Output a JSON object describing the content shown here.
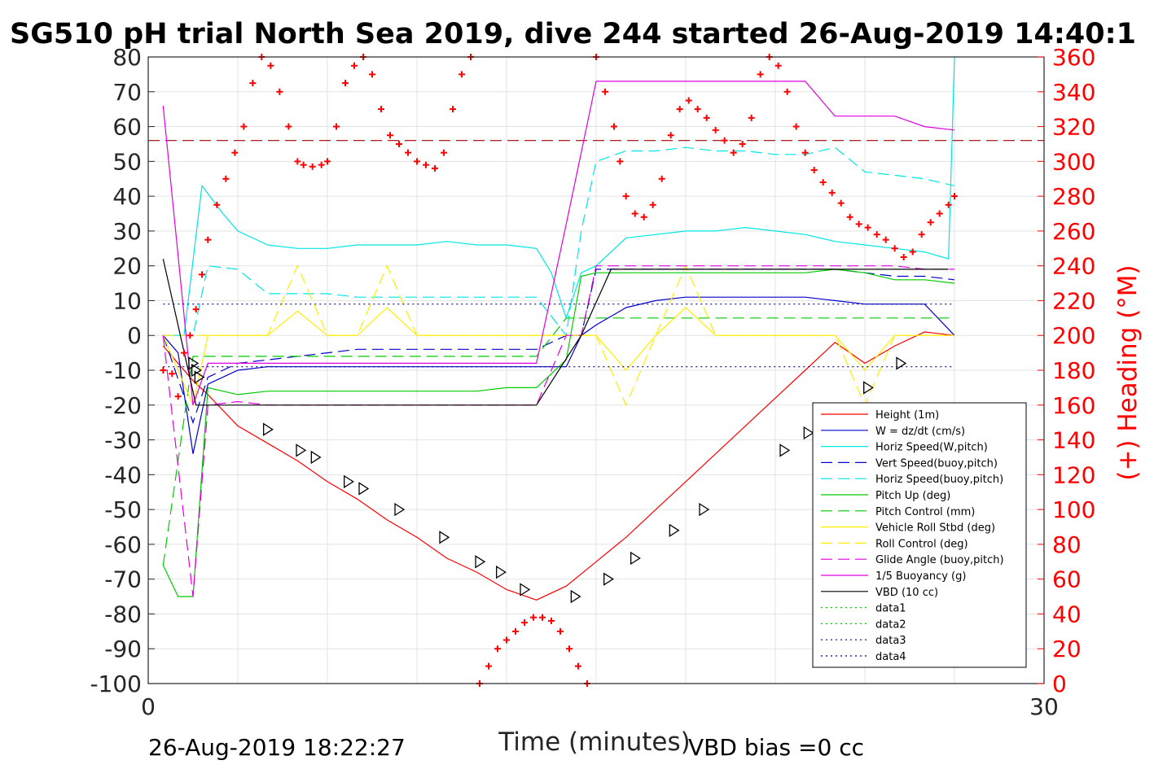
{
  "title": "SG510 pH trial North Sea 2019, dive 244 started 26-Aug-2019 14:40:1",
  "footer": {
    "timestamp": "26-Aug-2019 18:22:27",
    "vbd_bias": "VBD bias =0 cc"
  },
  "chart_data": {
    "type": "line",
    "xlabel": "Time (minutes)",
    "ylabel": "",
    "y2label": "(+) Heading (°M)",
    "xlim": [
      0,
      30
    ],
    "ylim": [
      -100,
      80
    ],
    "y2lim": [
      0,
      360
    ],
    "xticks": [
      "0",
      "30"
    ],
    "yticks": [
      "80",
      "70",
      "60",
      "50",
      "40",
      "30",
      "20",
      "10",
      "0",
      "-10",
      "-20",
      "-30",
      "-40",
      "-50",
      "-60",
      "-70",
      "-80",
      "-90",
      "-100"
    ],
    "y2ticks": [
      "360",
      "340",
      "320",
      "300",
      "280",
      "260",
      "240",
      "220",
      "200",
      "180",
      "160",
      "140",
      "120",
      "100",
      "80",
      "60",
      "40",
      "20",
      "0"
    ],
    "grid": true,
    "legend_position": "lower-right",
    "colors": {
      "red": "#ff0000",
      "blue": "#0000cd",
      "cyan": "#00e5e5",
      "green": "#00cc00",
      "yellow": "#ffee00",
      "magenta": "#e000e0",
      "black": "#000000",
      "darkred": "#a00000",
      "darkblue": "#000080"
    },
    "series": [
      {
        "name": "Height (1m)",
        "color": "#ff0000",
        "dash": "solid",
        "x": [
          0.5,
          1.5,
          2,
          3,
          4,
          5,
          6,
          7,
          8,
          9,
          10,
          11,
          12,
          13,
          14,
          15,
          16,
          17,
          18,
          19,
          20,
          21,
          22,
          23,
          24,
          25,
          26,
          27
        ],
        "y": [
          -3,
          -13,
          -17,
          -26,
          -31,
          -36,
          -42,
          -47,
          -53,
          -58,
          -64,
          -68,
          -73,
          -76,
          -72,
          -65,
          -58,
          -50,
          -42,
          -34,
          -26,
          -18,
          -10,
          -2,
          -8,
          -3,
          1,
          0
        ]
      },
      {
        "name": "W = dz/dt (cm/s)",
        "color": "#0000cd",
        "dash": "solid",
        "x": [
          0.5,
          1,
          1.5,
          2,
          3,
          4,
          5,
          6,
          7,
          8,
          9,
          10,
          11,
          12,
          13,
          14,
          14.5,
          15,
          16,
          17,
          18,
          19,
          20,
          21,
          22,
          23,
          24,
          25,
          26,
          27
        ],
        "y": [
          0,
          -5,
          -34,
          -14,
          -10,
          -9,
          -9,
          -9,
          -9,
          -9,
          -9,
          -9,
          -9,
          -9,
          -9,
          -9,
          0,
          3,
          8,
          10,
          11,
          11,
          11,
          11,
          11,
          10,
          9,
          9,
          9,
          0
        ]
      },
      {
        "name": "Horiz Speed(W,pitch)",
        "color": "#00e5e5",
        "dash": "solid",
        "x": [
          0.5,
          1.2,
          1.8,
          2.5,
          3,
          4,
          5,
          6,
          7,
          8,
          9,
          10,
          11,
          12,
          13,
          13.5,
          14,
          14.5,
          15,
          16,
          17,
          18,
          19,
          20,
          21,
          22,
          23,
          24,
          25,
          26,
          26.8,
          27
        ],
        "y": [
          0,
          0,
          43,
          35,
          30,
          26,
          25,
          25,
          26,
          26,
          26,
          27,
          26,
          26,
          25,
          18,
          5,
          18,
          20,
          28,
          29,
          30,
          30,
          31,
          30,
          29,
          27,
          26,
          25,
          24,
          22,
          80
        ]
      },
      {
        "name": "Vert Speed(buoy,pitch)",
        "color": "#0000cd",
        "dash": "dashed",
        "x": [
          0.5,
          1.5,
          2,
          3,
          4,
          5,
          6,
          7,
          8,
          9,
          10,
          11,
          12,
          13,
          14,
          14.5,
          15,
          16,
          17,
          18,
          19,
          20,
          21,
          22,
          23,
          24,
          25,
          26,
          27
        ],
        "y": [
          0,
          -25,
          -12,
          -8,
          -7,
          -6,
          -5,
          -4,
          -4,
          -4,
          -4,
          -4,
          -4,
          -4,
          0,
          0,
          19,
          19,
          19,
          19,
          19,
          19,
          19,
          19,
          19,
          18,
          17,
          17,
          16
        ]
      },
      {
        "name": "Horiz Speed(buoy,pitch)",
        "color": "#00e5e5",
        "dash": "dashed",
        "x": [
          0.5,
          1.5,
          2,
          3,
          4,
          5,
          6,
          7,
          8,
          9,
          10,
          11,
          12,
          13,
          14,
          14.5,
          15,
          16,
          17,
          18,
          19,
          20,
          21,
          22,
          23,
          24,
          25,
          26,
          27
        ],
        "y": [
          0,
          0,
          20,
          19,
          12,
          12,
          12,
          11,
          11,
          11,
          11,
          11,
          11,
          11,
          0,
          30,
          50,
          53,
          53,
          54,
          53,
          53,
          52,
          52,
          54,
          47,
          46,
          45,
          43
        ]
      },
      {
        "name": "Pitch Up (deg)",
        "color": "#00cc00",
        "dash": "solid",
        "x": [
          0.5,
          1,
          1.5,
          2,
          3,
          4,
          5,
          6,
          7,
          8,
          9,
          10,
          11,
          12,
          13,
          14,
          14.5,
          15,
          16,
          17,
          18,
          19,
          20,
          21,
          22,
          23,
          24,
          25,
          26,
          27
        ],
        "y": [
          -66,
          -75,
          -75,
          -15,
          -17,
          -16,
          -16,
          -16,
          -16,
          -16,
          -16,
          -16,
          -16,
          -15,
          -15,
          -7,
          17,
          18,
          18,
          18,
          18,
          18,
          18,
          18,
          18,
          19,
          18,
          16,
          16,
          15
        ]
      },
      {
        "name": "Pitch Control (mm)",
        "color": "#00cc00",
        "dash": "dashed",
        "x": [
          0.5,
          1.5,
          2,
          3,
          4,
          5,
          6,
          7,
          8,
          9,
          10,
          11,
          12,
          13,
          14,
          15,
          16,
          17,
          18,
          19,
          20,
          21,
          22,
          23,
          24,
          25,
          26,
          27
        ],
        "y": [
          -66,
          -6,
          -6,
          -6,
          -6,
          -6,
          -6,
          -6,
          -6,
          -6,
          -6,
          -6,
          -6,
          -6,
          5,
          5,
          5,
          5,
          5,
          5,
          5,
          5,
          5,
          5,
          5,
          5,
          5,
          5
        ]
      },
      {
        "name": "Vehicle Roll Stbd (deg)",
        "color": "#ffee00",
        "dash": "solid",
        "x": [
          0.5,
          1.5,
          2,
          3,
          4,
          5,
          6,
          7,
          8,
          9,
          10,
          11,
          12,
          13,
          14,
          15,
          16,
          17,
          18,
          19,
          20,
          21,
          22,
          23,
          24,
          25,
          26,
          27
        ],
        "y": [
          0,
          -20,
          0,
          0,
          0,
          7,
          0,
          0,
          8,
          0,
          0,
          0,
          0,
          0,
          0,
          0,
          -10,
          0,
          8,
          0,
          0,
          0,
          0,
          0,
          -10,
          0,
          0,
          0
        ]
      },
      {
        "name": "Roll Control (deg)",
        "color": "#ffee00",
        "dash": "dashed",
        "x": [
          0.5,
          1.5,
          2,
          3,
          4,
          5,
          6,
          7,
          8,
          9,
          10,
          11,
          12,
          13,
          14,
          15,
          16,
          17,
          18,
          19,
          20,
          21,
          22,
          23,
          24,
          25,
          26,
          27
        ],
        "y": [
          0,
          0,
          0,
          0,
          0,
          20,
          0,
          0,
          20,
          0,
          0,
          0,
          0,
          0,
          0,
          0,
          -20,
          0,
          20,
          0,
          0,
          0,
          0,
          0,
          -20,
          0,
          0,
          0
        ]
      },
      {
        "name": "Glide Angle (buoy,pitch)",
        "color": "#e000e0",
        "dash": "dashed",
        "x": [
          0.5,
          1.5,
          2,
          3,
          4,
          5,
          6,
          7,
          8,
          9,
          10,
          11,
          12,
          13,
          14,
          14.5,
          15,
          16,
          17,
          18,
          19,
          20,
          21,
          22,
          23,
          24,
          25,
          26,
          27
        ],
        "y": [
          0,
          -75,
          -20,
          -19,
          -20,
          -20,
          -20,
          -20,
          -20,
          -20,
          -20,
          -20,
          -20,
          -20,
          0,
          0,
          20,
          20,
          20,
          20,
          20,
          20,
          20,
          20,
          20,
          20,
          20,
          19,
          19
        ]
      },
      {
        "name": "1/5 Buoyancy (g)",
        "color": "#e000e0",
        "dash": "solid",
        "x": [
          0.5,
          1.5,
          2,
          3,
          4,
          5,
          6,
          7,
          8,
          9,
          10,
          11,
          12,
          13,
          14,
          15,
          16,
          17,
          18,
          19,
          20,
          21,
          22,
          23,
          24,
          25,
          26,
          27
        ],
        "y": [
          66,
          -20,
          -8,
          -8,
          -8,
          -8,
          -8,
          -8,
          -8,
          -8,
          -8,
          -8,
          -8,
          -8,
          32,
          73,
          73,
          73,
          73,
          73,
          73,
          73,
          73,
          63,
          63,
          63,
          60,
          59
        ]
      },
      {
        "name": "VBD (10 cc)",
        "color": "#000000",
        "dash": "solid",
        "x": [
          0.5,
          1.6,
          2,
          13,
          14.5,
          15.5,
          26.8
        ],
        "y": [
          22,
          -20,
          -20,
          -20,
          0,
          19,
          19
        ]
      },
      {
        "name": "data1",
        "color": "#00cc00",
        "dash": "dotted",
        "x": [],
        "y": []
      },
      {
        "name": "data2",
        "color": "#00cc00",
        "dash": "dotted",
        "x": [],
        "y": []
      },
      {
        "name": "data3",
        "color": "#000080",
        "dash": "dotted",
        "x": [
          0.5,
          27
        ],
        "y": [
          9,
          9
        ]
      },
      {
        "name": "data4",
        "color": "#000080",
        "dash": "dotted",
        "x": [
          0.5,
          27
        ],
        "y": [
          -9,
          -9
        ]
      }
    ],
    "reference_lines": [
      {
        "axis": "y2",
        "value": 312,
        "color": "#a00000",
        "dash": "dashed"
      }
    ],
    "heading_points": {
      "axis": "y2",
      "color": "#ff0000",
      "marker": "+",
      "x": [
        0.5,
        0.8,
        1.0,
        1.2,
        1.4,
        1.6,
        1.8,
        2.0,
        2.3,
        2.6,
        2.9,
        3.2,
        3.5,
        3.8,
        4.1,
        4.4,
        4.7,
        5.0,
        5.2,
        5.5,
        5.8,
        6.0,
        6.3,
        6.6,
        6.9,
        7.2,
        7.5,
        7.8,
        8.1,
        8.4,
        8.7,
        9.0,
        9.3,
        9.6,
        9.9,
        10.2,
        10.5,
        10.8,
        11.1,
        11.4,
        11.7,
        12.0,
        12.3,
        12.6,
        12.9,
        13.2,
        13.5,
        13.8,
        14.1,
        14.4,
        14.7,
        15.0,
        15.3,
        15.6,
        15.8,
        16.0,
        16.3,
        16.6,
        16.9,
        17.2,
        17.5,
        17.8,
        18.1,
        18.4,
        18.7,
        19.0,
        19.3,
        19.6,
        19.9,
        20.2,
        20.5,
        20.8,
        21.1,
        21.4,
        21.7,
        22.0,
        22.3,
        22.6,
        22.9,
        23.2,
        23.5,
        23.8,
        24.1,
        24.4,
        24.7,
        25.0,
        25.3,
        25.6,
        25.9,
        26.2,
        26.5,
        26.8,
        27.0
      ],
      "y": [
        180,
        178,
        165,
        190,
        200,
        215,
        235,
        255,
        275,
        290,
        305,
        320,
        345,
        360,
        355,
        340,
        320,
        300,
        298,
        297,
        298,
        300,
        320,
        345,
        355,
        360,
        350,
        330,
        315,
        310,
        305,
        300,
        298,
        296,
        305,
        330,
        350,
        360,
        0,
        10,
        20,
        25,
        30,
        35,
        38,
        38,
        36,
        30,
        20,
        10,
        0,
        360,
        340,
        320,
        300,
        280,
        270,
        268,
        275,
        290,
        315,
        330,
        335,
        330,
        325,
        318,
        312,
        305,
        310,
        325,
        350,
        360,
        355,
        340,
        320,
        305,
        295,
        288,
        282,
        276,
        268,
        264,
        262,
        258,
        255,
        250,
        245,
        248,
        258,
        265,
        270,
        275,
        280
      ]
    },
    "triangle_markers": {
      "marker": "triangle",
      "color": "#000000",
      "x": [
        1.5,
        1.6,
        1.7,
        4.0,
        5.1,
        5.6,
        6.7,
        7.2,
        8.4,
        9.9,
        11.1,
        11.8,
        12.6,
        14.3,
        15.4,
        16.3,
        17.6,
        18.6,
        21.3,
        22.1,
        24.1,
        25.2
      ],
      "y": [
        -8,
        -10,
        -12,
        -27,
        -33,
        -35,
        -42,
        -44,
        -50,
        -58,
        -65,
        -68,
        -73,
        -75,
        -70,
        -64,
        -56,
        -50,
        -33,
        -28,
        -15,
        -8
      ]
    }
  }
}
